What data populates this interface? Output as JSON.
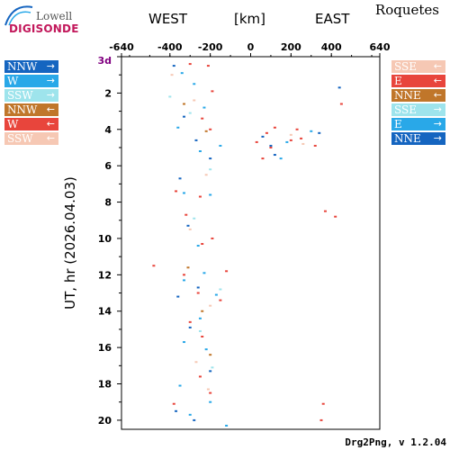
{
  "logo": {
    "line1": "Lowell",
    "line2": "DIGISONDE"
  },
  "station": "Roquetes",
  "header": {
    "west": "WEST",
    "unit": "[km]",
    "east": "EAST"
  },
  "footer": "Drg2Png, v 1.2.04",
  "legend_left": [
    {
      "label": "NNW",
      "arrow": "→",
      "color": "#1565c0"
    },
    {
      "label": "W",
      "arrow": "→",
      "color": "#29a8e8"
    },
    {
      "label": "SSW",
      "arrow": "→",
      "color": "#9ee4ec"
    },
    {
      "label": "NNW",
      "arrow": "←",
      "color": "#c0762a"
    },
    {
      "label": "W",
      "arrow": "←",
      "color": "#e8453c"
    },
    {
      "label": "SSW",
      "arrow": "←",
      "color": "#f6c8b4"
    }
  ],
  "legend_right": [
    {
      "label": "SSE",
      "arrow": "←",
      "color": "#f6c8b4"
    },
    {
      "label": "E",
      "arrow": "←",
      "color": "#e8453c"
    },
    {
      "label": "NNE",
      "arrow": "←",
      "color": "#c0762a"
    },
    {
      "label": "SSE",
      "arrow": "→",
      "color": "#9ee4ec"
    },
    {
      "label": "E",
      "arrow": "→",
      "color": "#29a8e8"
    },
    {
      "label": "NNE",
      "arrow": "→",
      "color": "#1565c0"
    }
  ],
  "chart_data": {
    "type": "scatter",
    "title": "",
    "xlabel": "[km]",
    "ylabel": "UT, hr (2026.04.03)",
    "xlim": [
      -640,
      640
    ],
    "ylim": [
      0,
      20.5
    ],
    "x_ticks": [
      -640,
      -400,
      -200,
      0,
      200,
      400,
      640
    ],
    "x_tick_labels": [
      "-640",
      "-400",
      "-200",
      "0",
      "200",
      "400",
      "640"
    ],
    "y_ticks": [
      2,
      4,
      6,
      8,
      10,
      12,
      14,
      16,
      18,
      20
    ],
    "y_tick_labels": [
      "2",
      "4",
      "6",
      "8",
      "10",
      "12",
      "14",
      "16",
      "18",
      "20"
    ],
    "y_top_label": "3d",
    "y_top_label_color": "#800080",
    "grid": false,
    "series": [
      {
        "name": "NNW →",
        "color": "#1565c0",
        "points": [
          [
            -380,
            0.5
          ],
          [
            -330,
            3.3
          ],
          [
            -270,
            4.6
          ],
          [
            -200,
            5.6
          ],
          [
            -350,
            6.7
          ],
          [
            -310,
            9.3
          ],
          [
            -260,
            12.7
          ],
          [
            -360,
            13.2
          ],
          [
            -300,
            14.9
          ],
          [
            -200,
            17.3
          ],
          [
            -370,
            19.5
          ],
          [
            -280,
            20.0
          ],
          [
            60,
            4.4
          ],
          [
            120,
            5.4
          ],
          [
            340,
            4.2
          ]
        ]
      },
      {
        "name": "W →",
        "color": "#29a8e8",
        "points": [
          [
            -340,
            0.9
          ],
          [
            -280,
            1.5
          ],
          [
            -230,
            2.8
          ],
          [
            -360,
            3.9
          ],
          [
            -150,
            4.9
          ],
          [
            -250,
            5.2
          ],
          [
            -330,
            7.5
          ],
          [
            -200,
            7.6
          ],
          [
            -260,
            10.4
          ],
          [
            -230,
            11.9
          ],
          [
            -330,
            12.3
          ],
          [
            -170,
            13.1
          ],
          [
            -250,
            14.4
          ],
          [
            -330,
            15.7
          ],
          [
            -220,
            16.1
          ],
          [
            -350,
            18.1
          ],
          [
            -200,
            19.0
          ],
          [
            -120,
            20.3
          ],
          [
            -300,
            19.7
          ],
          [
            150,
            5.6
          ]
        ]
      },
      {
        "name": "SSW →",
        "color": "#9ee4ec",
        "points": [
          [
            -400,
            2.2
          ],
          [
            -300,
            3.1
          ],
          [
            -200,
            6.2
          ],
          [
            -280,
            8.9
          ],
          [
            -150,
            12.8
          ],
          [
            -250,
            15.1
          ],
          [
            -190,
            17.1
          ]
        ]
      },
      {
        "name": "NNW ←",
        "color": "#c0762a",
        "points": [
          [
            -330,
            2.6
          ],
          [
            -220,
            4.1
          ],
          [
            -310,
            11.6
          ],
          [
            -240,
            14.0
          ],
          [
            -200,
            16.4
          ]
        ]
      },
      {
        "name": "W ←",
        "color": "#e8453c",
        "points": [
          [
            -300,
            0.4
          ],
          [
            -210,
            0.5
          ],
          [
            -190,
            1.9
          ],
          [
            -240,
            3.4
          ],
          [
            -200,
            4.0
          ],
          [
            -370,
            7.4
          ],
          [
            -250,
            7.7
          ],
          [
            -190,
            10.0
          ],
          [
            -240,
            10.3
          ],
          [
            -480,
            11.5
          ],
          [
            -330,
            12.0
          ],
          [
            -260,
            13.0
          ],
          [
            -150,
            13.4
          ],
          [
            -300,
            14.6
          ],
          [
            -240,
            15.4
          ],
          [
            -250,
            17.6
          ],
          [
            -200,
            18.5
          ],
          [
            -380,
            19.1
          ],
          [
            30,
            4.7
          ],
          [
            80,
            4.2
          ],
          [
            100,
            5.0
          ],
          [
            60,
            5.6
          ],
          [
            200,
            4.6
          ],
          [
            250,
            4.5
          ],
          [
            320,
            4.9
          ],
          [
            370,
            8.5
          ],
          [
            420,
            8.8
          ],
          [
            450,
            2.6
          ],
          [
            -320,
            8.7
          ],
          [
            360,
            19.1
          ],
          [
            -120,
            11.8
          ]
        ]
      },
      {
        "name": "SSW ←",
        "color": "#f6c8b4",
        "points": [
          [
            -390,
            1.0
          ],
          [
            -280,
            2.4
          ],
          [
            -220,
            6.5
          ],
          [
            -300,
            9.5
          ],
          [
            -200,
            13.7
          ],
          [
            -270,
            16.8
          ],
          [
            -210,
            18.3
          ]
        ]
      },
      {
        "name": "SSE ←",
        "color": "#f6c8b4",
        "points": [
          [
            200,
            4.3
          ],
          [
            260,
            4.8
          ]
        ]
      },
      {
        "name": "E ←",
        "color": "#e8453c",
        "points": [
          [
            120,
            3.9
          ],
          [
            230,
            4.0
          ],
          [
            350,
            20.0
          ]
        ]
      },
      {
        "name": "E →",
        "color": "#29a8e8",
        "points": [
          [
            180,
            4.7
          ],
          [
            300,
            4.1
          ]
        ]
      },
      {
        "name": "NNE →",
        "color": "#1565c0",
        "points": [
          [
            440,
            1.7
          ],
          [
            100,
            4.9
          ]
        ]
      }
    ]
  }
}
